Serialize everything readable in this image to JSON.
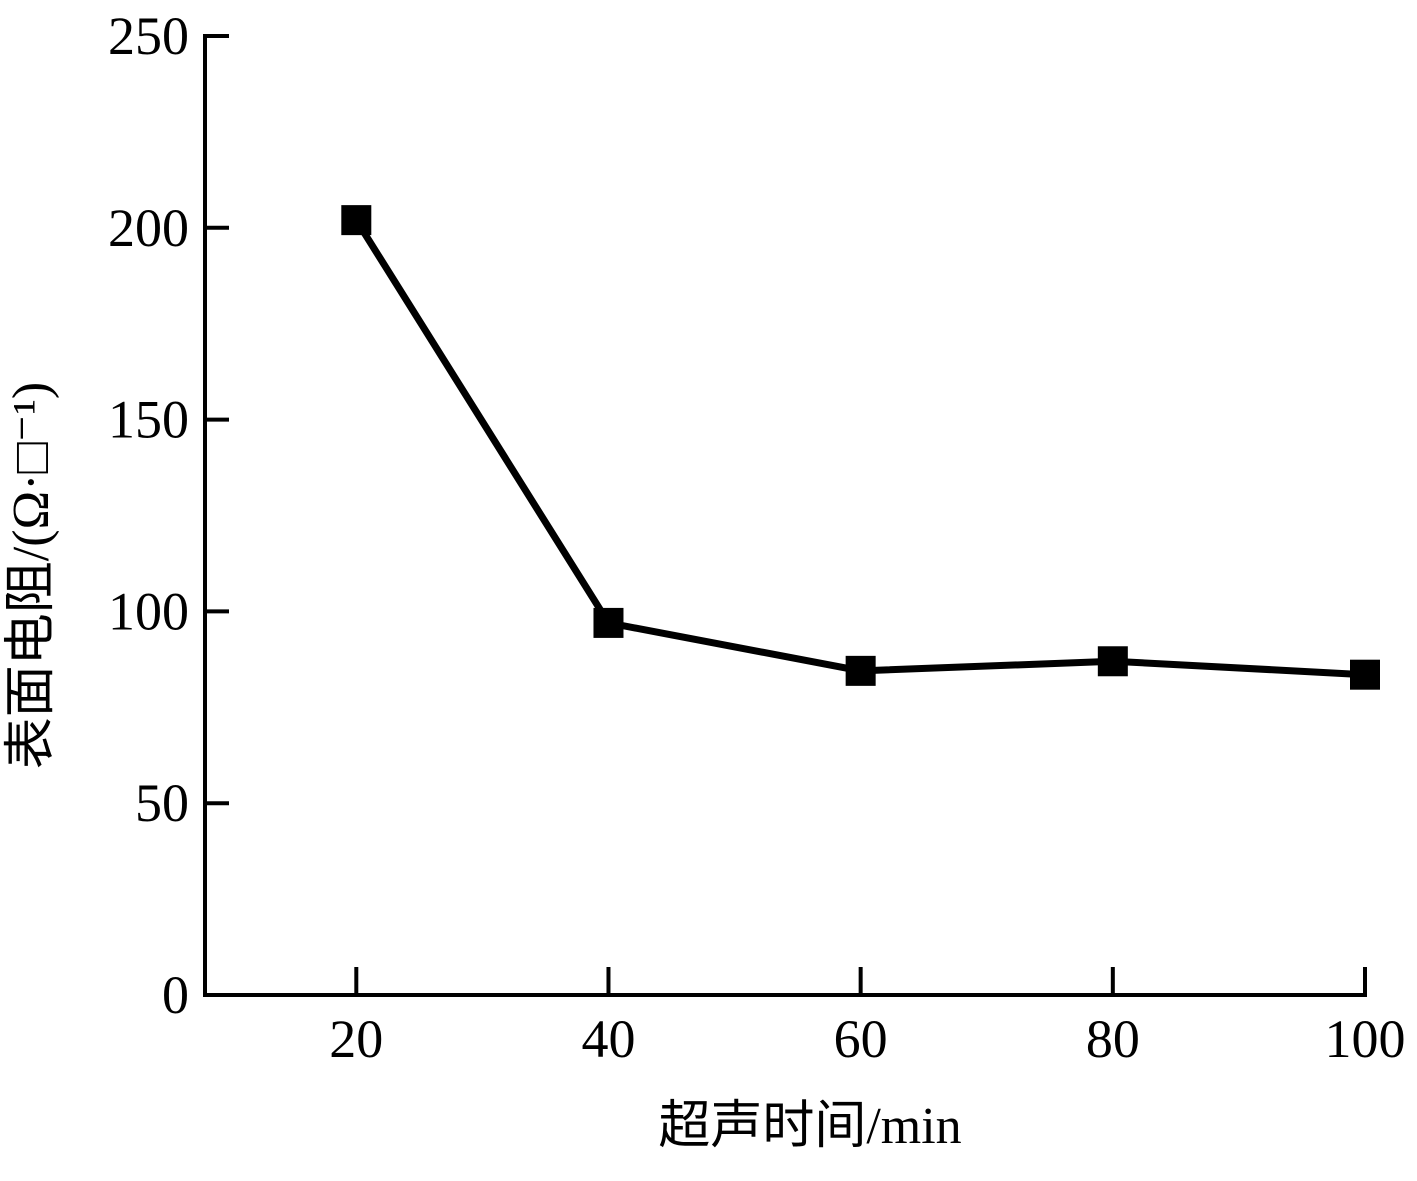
{
  "chart_data": {
    "type": "line",
    "title": "",
    "xlabel": "超声时间/min",
    "ylabel": "表面电阻/(Ω·□⁻¹)",
    "x": [
      20,
      40,
      60,
      80,
      100
    ],
    "series": [
      {
        "values": [
          202,
          97,
          84.5,
          87,
          83.5
        ]
      }
    ],
    "xticks": [
      20,
      40,
      60,
      80,
      100
    ],
    "xtick_labels": [
      "20",
      "40",
      "60",
      "80",
      "100"
    ],
    "yticks": [
      0,
      50,
      100,
      150,
      200,
      250
    ],
    "ytick_labels": [
      "0",
      "50",
      "100",
      "150",
      "200",
      "250"
    ],
    "xlim": [
      8,
      100
    ],
    "ylim": [
      0,
      250
    ],
    "grid": false,
    "legend": "none",
    "line_color": "#000000",
    "marker": "square"
  }
}
